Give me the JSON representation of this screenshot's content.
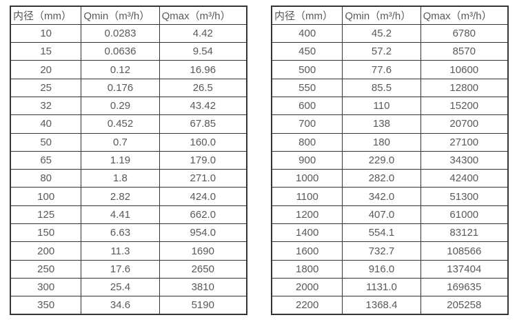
{
  "colors": {
    "background": "#ffffff",
    "border": "#333333",
    "text": "#595959"
  },
  "tables": [
    {
      "name": "flow-rates-small-diameters",
      "headers": [
        "内径（mm）",
        "Qmin（m³/h）",
        "Qmax（m³/h）"
      ],
      "rows": [
        [
          "10",
          "0.0283",
          "4.42"
        ],
        [
          "15",
          "0.0636",
          "9.54"
        ],
        [
          "20",
          "0.12",
          "16.96"
        ],
        [
          "25",
          "0.176",
          "26.5"
        ],
        [
          "32",
          "0.29",
          "43.42"
        ],
        [
          "40",
          "0.452",
          "67.85"
        ],
        [
          "50",
          "0.7",
          "160.0"
        ],
        [
          "65",
          "1.19",
          "179.0"
        ],
        [
          "80",
          "1.8",
          "271.0"
        ],
        [
          "100",
          "2.82",
          "424.0"
        ],
        [
          "125",
          "4.41",
          "662.0"
        ],
        [
          "150",
          "6.63",
          "954.0"
        ],
        [
          "200",
          "11.3",
          "1690"
        ],
        [
          "250",
          "17.6",
          "2650"
        ],
        [
          "300",
          "25.4",
          "3810"
        ],
        [
          "350",
          "34.6",
          "5190"
        ]
      ]
    },
    {
      "name": "flow-rates-large-diameters",
      "headers": [
        "内径（mm）",
        "Qmin（m³/h）",
        "Qmax（m³/h）"
      ],
      "rows": [
        [
          "400",
          "45.2",
          "6780"
        ],
        [
          "450",
          "57.2",
          "8570"
        ],
        [
          "500",
          "77.6",
          "10600"
        ],
        [
          "550",
          "85.5",
          "12800"
        ],
        [
          "600",
          "110",
          "15200"
        ],
        [
          "700",
          "138",
          "20700"
        ],
        [
          "800",
          "180",
          "27100"
        ],
        [
          "900",
          "229.0",
          "34300"
        ],
        [
          "1000",
          "282.0",
          "42400"
        ],
        [
          "1100",
          "342.0",
          "51300"
        ],
        [
          "1200",
          "407.0",
          "61000"
        ],
        [
          "1400",
          "554.1",
          "83121"
        ],
        [
          "1600",
          "732.7",
          "108566"
        ],
        [
          "1800",
          "916.0",
          "137404"
        ],
        [
          "2000",
          "1131.0",
          "169635"
        ],
        [
          "2200",
          "1368.4",
          "205258"
        ]
      ]
    }
  ]
}
